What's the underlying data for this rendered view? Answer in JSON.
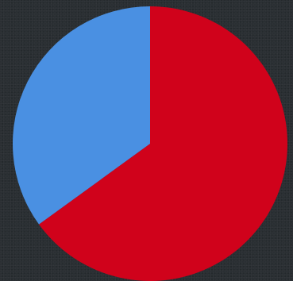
{
  "chart_data": {
    "type": "pie",
    "title": "",
    "legend": "none",
    "series": [
      {
        "values": [
          65,
          35
        ],
        "colors": [
          "#d0021b",
          "#4a90e2"
        ]
      }
    ],
    "start_angle": "top",
    "direction": "clockwise"
  }
}
